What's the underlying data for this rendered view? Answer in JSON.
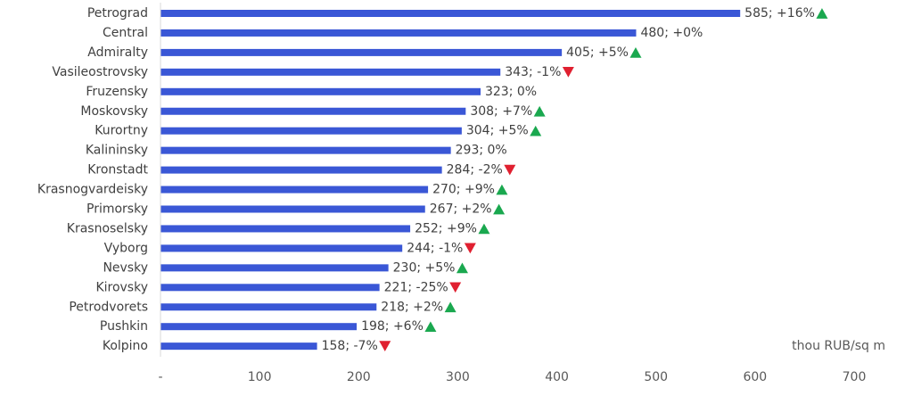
{
  "chart_data": {
    "type": "bar",
    "orientation": "horizontal",
    "categories": [
      "Petrograd",
      "Central",
      "Admiralty",
      "Vasileostrovsky",
      "Fruzensky",
      "Moskovsky",
      "Kurortny",
      "Kalininsky",
      "Kronstadt",
      "Krasnogvardeisky",
      "Primorsky",
      "Krasnoselsky",
      "Vyborg",
      "Nevsky",
      "Kirovsky",
      "Petrodvorets",
      "Pushkin",
      "Kolpino"
    ],
    "values": [
      585,
      480,
      405,
      343,
      323,
      308,
      304,
      293,
      284,
      270,
      267,
      252,
      244,
      230,
      221,
      218,
      198,
      158
    ],
    "changes": [
      "+16%",
      "+0%",
      "+5%",
      "-1%",
      "0%",
      "+7%",
      "+5%",
      "0%",
      "-2%",
      "+9%",
      "+2%",
      "+9%",
      "-1%",
      "+5%",
      "-25%",
      "+2%",
      "+6%",
      "-7%"
    ],
    "trend": [
      "up",
      "none",
      "up",
      "down",
      "none",
      "up",
      "up",
      "none",
      "down",
      "up",
      "up",
      "up",
      "down",
      "up",
      "down",
      "up",
      "up",
      "down"
    ],
    "data_labels": [
      "585; +16%",
      "480; +0%",
      "405; +5%",
      "343; -1%",
      "323; 0%",
      "308; +7%",
      "304; +5%",
      "293; 0%",
      "284; -2%",
      "270; +9%",
      "267; +2%",
      "252; +9%",
      "244; -1%",
      "230; +5%",
      "221; -25%",
      "218; +2%",
      "198; +6%",
      "158; -7%"
    ],
    "xlim": [
      0,
      700
    ],
    "xticks": [
      0,
      100,
      200,
      300,
      400,
      500,
      600,
      700
    ],
    "xtick_labels": [
      "-",
      "100",
      "200",
      "300",
      "400",
      "500",
      "600",
      "700"
    ],
    "unit_label": "thou RUB/sq m",
    "grid": "none",
    "legend": "none",
    "colors": {
      "bar": "#3a57d6",
      "up": "#1aa84f",
      "down": "#e02030",
      "axis": "#d9d9d9"
    }
  }
}
